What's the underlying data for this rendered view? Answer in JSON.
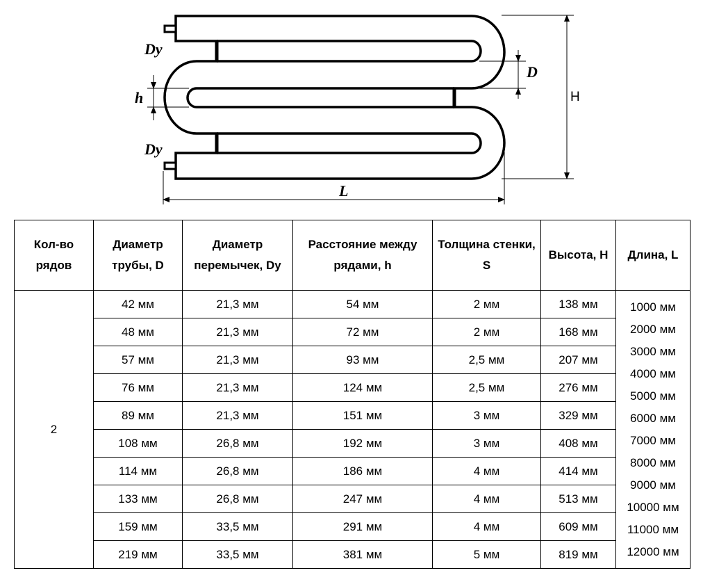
{
  "drawing": {
    "labels": {
      "dy_top": "Dy",
      "dy_bottom": "Dy",
      "h": "h",
      "d": "D",
      "height": "H",
      "length": "L"
    }
  },
  "table": {
    "headers": [
      "Кол-во рядов",
      "Диаметр трубы, D",
      "Диаметр перемычек, Dy",
      "Расстояние между рядами, h",
      "Толщина стенки, S",
      "Высота, H",
      "Длина, L"
    ],
    "rows_count": "2",
    "rows": [
      [
        "42 мм",
        "21,3 мм",
        "54 мм",
        "2 мм",
        "138 мм"
      ],
      [
        "48 мм",
        "21,3 мм",
        "72 мм",
        "2 мм",
        "168 мм"
      ],
      [
        "57 мм",
        "21,3 мм",
        "93 мм",
        "2,5 мм",
        "207 мм"
      ],
      [
        "76 мм",
        "21,3 мм",
        "124 мм",
        "2,5 мм",
        "276 мм"
      ],
      [
        "89 мм",
        "21,3 мм",
        "151 мм",
        "3 мм",
        "329 мм"
      ],
      [
        "108 мм",
        "26,8 мм",
        "192 мм",
        "3 мм",
        "408 мм"
      ],
      [
        "114 мм",
        "26,8 мм",
        "186 мм",
        "4 мм",
        "414 мм"
      ],
      [
        "133 мм",
        "26,8 мм",
        "247 мм",
        "4 мм",
        "513 мм"
      ],
      [
        "159 мм",
        "33,5 мм",
        "291 мм",
        "4 мм",
        "609 мм"
      ],
      [
        "219 мм",
        "33,5 мм",
        "381 мм",
        "5 мм",
        "819 мм"
      ]
    ],
    "lengths": [
      "1000 мм",
      "2000 мм",
      "3000 мм",
      "4000 мм",
      "5000 мм",
      "6000 мм",
      "7000 мм",
      "8000 мм",
      "9000 мм",
      "10000 мм",
      "11000 мм",
      "12000 мм"
    ]
  }
}
